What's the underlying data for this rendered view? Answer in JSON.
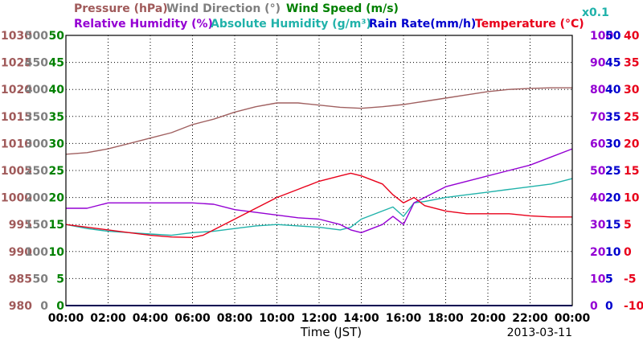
{
  "chart_data": {
    "type": "line",
    "xlabel": "Time (JST)",
    "date": "2013-03-11",
    "x_ticks": [
      "00:00",
      "02:00",
      "04:00",
      "06:00",
      "08:00",
      "10:00",
      "12:00",
      "14:00",
      "16:00",
      "18:00",
      "20:00",
      "22:00",
      "00:00"
    ],
    "legend": {
      "pressure": "Pressure (hPa)",
      "wind_direction": "Wind Direction (°)",
      "wind_speed": "Wind Speed (m/s)",
      "relative_humidity": "Relative Humidity (%)",
      "absolute_humidity": "Absolute Humidity (g/m³)",
      "rain_rate": "Rain Rate(mm/h)",
      "temperature": "Temperature (°C)",
      "rain_scale": "x0.1"
    },
    "axes": {
      "pressure": {
        "color": "#a05a5a",
        "ticks": [
          "980",
          "985",
          "990",
          "995",
          "1000",
          "1005",
          "1010",
          "1015",
          "1020",
          "1025",
          "1030"
        ],
        "min": 980,
        "max": 1030
      },
      "wind_direction": {
        "color": "#7f7f7f",
        "ticks": [
          "0",
          "50",
          "100",
          "150",
          "200",
          "250",
          "300",
          "350",
          "400",
          "450",
          "500"
        ],
        "min": 0,
        "max": 500
      },
      "wind_speed": {
        "color": "#008000",
        "ticks": [
          "0",
          "5",
          "10",
          "15",
          "20",
          "25",
          "30",
          "35",
          "40",
          "45",
          "50"
        ],
        "min": 0,
        "max": 50
      },
      "relative_humidity": {
        "color": "#9400d3",
        "ticks": [
          "0",
          "10",
          "20",
          "30",
          "40",
          "50",
          "60",
          "70",
          "80",
          "90",
          "100"
        ],
        "min": 0,
        "max": 100
      },
      "rain_rate": {
        "color": "#0000cd",
        "ticks": [
          "0",
          "5",
          "10",
          "15",
          "20",
          "25",
          "30",
          "35",
          "40",
          "45",
          "50"
        ],
        "min": 0,
        "max": 50
      },
      "temperature": {
        "color": "#e8001a",
        "ticks": [
          "-10",
          "-5",
          "0",
          "5",
          "10",
          "15",
          "20",
          "25",
          "30",
          "35",
          "40"
        ],
        "min": -10,
        "max": 40
      }
    },
    "colors": {
      "pressure": "#a06060",
      "wind_direction": "#707070",
      "wind_speed": "#008000",
      "relative_humidity": "#9400d3",
      "absolute_humidity": "#20b2aa",
      "rain_rate": "#0000cd",
      "temperature": "#e8001a"
    },
    "series": [
      {
        "key": "pressure",
        "name": "Pressure (hPa)",
        "axis": "pressure",
        "x": [
          0,
          1,
          2,
          3,
          4,
          5,
          6,
          7,
          8,
          9,
          10,
          11,
          12,
          13,
          14,
          15,
          16,
          17,
          18,
          19,
          20,
          21,
          22,
          23,
          24
        ],
        "values": [
          1008,
          1008.3,
          1009,
          1010,
          1011,
          1012,
          1013.5,
          1014.5,
          1015.8,
          1016.8,
          1017.5,
          1017.5,
          1017.1,
          1016.7,
          1016.5,
          1016.8,
          1017.2,
          1017.8,
          1018.4,
          1019,
          1019.6,
          1020,
          1020.2,
          1020.3,
          1020.3
        ]
      },
      {
        "key": "temperature",
        "name": "Temperature (°C)",
        "axis": "temperature",
        "x": [
          0,
          1,
          2,
          3,
          4,
          5,
          6,
          6.5,
          7,
          8,
          9,
          10,
          11,
          12,
          13,
          13.5,
          14,
          15,
          15.5,
          16,
          16.5,
          17,
          18,
          19,
          20,
          21,
          22,
          23,
          24
        ],
        "values": [
          5,
          4.5,
          4,
          3.5,
          3,
          2.7,
          2.6,
          3,
          4,
          6,
          8,
          10,
          11.5,
          13,
          14,
          14.5,
          14,
          12.5,
          10.5,
          9,
          10,
          8.5,
          7.5,
          7,
          7,
          7,
          6.6,
          6.4,
          6.4
        ]
      },
      {
        "key": "relative_humidity",
        "name": "Relative Humidity (%)",
        "axis": "relative_humidity",
        "x": [
          0,
          1,
          2,
          3,
          4,
          5,
          5.5,
          6,
          7,
          8,
          9,
          10,
          11,
          12,
          13,
          13.5,
          14,
          15,
          15.5,
          16,
          16.5,
          17,
          18,
          19,
          20,
          21,
          22,
          23,
          24
        ],
        "values": [
          36,
          36,
          38,
          38,
          38,
          38,
          38,
          38,
          37.5,
          35.5,
          34.5,
          33.5,
          32.5,
          32,
          30,
          28,
          27,
          30,
          33,
          30,
          38,
          40,
          44,
          46,
          48,
          50,
          52,
          55,
          58
        ]
      },
      {
        "key": "absolute_humidity",
        "name": "Absolute Humidity (g/m³)",
        "axis": "relative_humidity",
        "x": [
          0,
          1,
          2,
          3,
          4,
          5,
          6,
          7,
          8,
          9,
          10,
          11,
          12,
          13,
          13.5,
          14,
          15,
          15.5,
          16,
          16.5,
          17,
          18,
          19,
          20,
          21,
          22,
          23,
          24
        ],
        "values": [
          30,
          28.5,
          27.5,
          27,
          26.5,
          26,
          27,
          27.5,
          28.5,
          29.5,
          30,
          29.5,
          29,
          28,
          29,
          32,
          35,
          36.5,
          33,
          38,
          38.5,
          40,
          41,
          42,
          43,
          44,
          45,
          47
        ]
      },
      {
        "key": "rain_rate",
        "name": "Rain Rate(mm/h)",
        "axis": "rain_rate",
        "x": [
          0,
          24
        ],
        "values": [
          0,
          0
        ]
      }
    ]
  }
}
